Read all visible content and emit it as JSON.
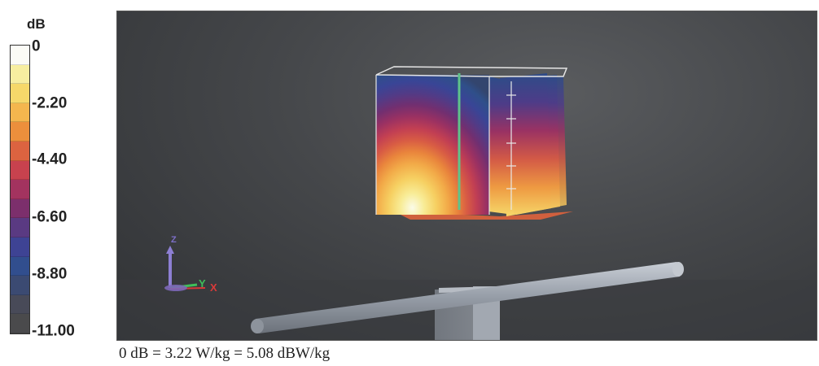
{
  "legend": {
    "unit": "dB",
    "ticks": [
      "0",
      "-2.20",
      "-4.40",
      "-6.60",
      "-8.80",
      "-11.00"
    ],
    "colors": [
      "#fbfbf6",
      "#f7eea0",
      "#f6d86a",
      "#f4b64e",
      "#ec8f3c",
      "#dc6340",
      "#c8424e",
      "#a3335f",
      "#7c2f6c",
      "#5a3a82",
      "#3e4394",
      "#314e8e",
      "#3b4a72",
      "#484a58",
      "#4a4a4c"
    ]
  },
  "viewport": {
    "axes": {
      "z_label": "Z",
      "y_label": "Y",
      "x_label": "X"
    },
    "colors": {
      "z_axis": "#8d7fd3",
      "y_axis": "#3fbf5a",
      "x_axis": "#d83a3a",
      "probe_line": "#5fc38a"
    }
  },
  "caption": "0 dB = 3.22 W/kg = 5.08 dBW/kg"
}
